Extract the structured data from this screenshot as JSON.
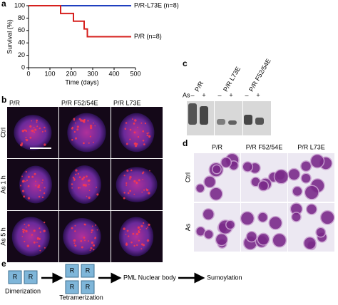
{
  "chart_data": {
    "type": "line",
    "panel": "a",
    "ylabel": "Survival (%)",
    "xlabel": "Time (days)",
    "xlim": [
      0,
      500
    ],
    "xticks": [
      0,
      100,
      200,
      300,
      400,
      500
    ],
    "ylim": [
      0,
      100
    ],
    "yticks": [
      0,
      20,
      40,
      60,
      80,
      100
    ],
    "series": [
      {
        "name": "P/R-L73E (n=8)",
        "color": "#1f3fbf",
        "x": [
          0,
          480
        ],
        "values": [
          100,
          100
        ]
      },
      {
        "name": "P/R (n=8)",
        "color": "#d6201e",
        "x": [
          0,
          150,
          150,
          210,
          210,
          260,
          260,
          275,
          275,
          480
        ],
        "values": [
          100,
          100,
          87.5,
          87.5,
          75,
          75,
          62.5,
          62.5,
          50,
          50
        ]
      }
    ]
  },
  "panel_b": {
    "panel": "b",
    "columns": [
      "P/R",
      "P/R F52/54E",
      "P/R L73E"
    ],
    "rows": [
      "Ctrl",
      "As 1 h",
      "As 5 h"
    ]
  },
  "panel_c": {
    "panel": "c",
    "lanes": [
      "P/R",
      "P/R L73E",
      "P/R F52/54E"
    ],
    "treatment": "As",
    "signs": [
      "–",
      "+",
      "–",
      "+",
      "–",
      "+"
    ]
  },
  "panel_d": {
    "panel": "d",
    "columns": [
      "P/R",
      "P/R F52/54E",
      "P/R L73E"
    ],
    "rows": [
      "Ctrl",
      "As"
    ]
  },
  "panel_e": {
    "panel": "e",
    "monomer": "R",
    "steps": [
      "Dimerization",
      "Tetramerization",
      "PML Nuclear body",
      "Sumoylation"
    ]
  }
}
